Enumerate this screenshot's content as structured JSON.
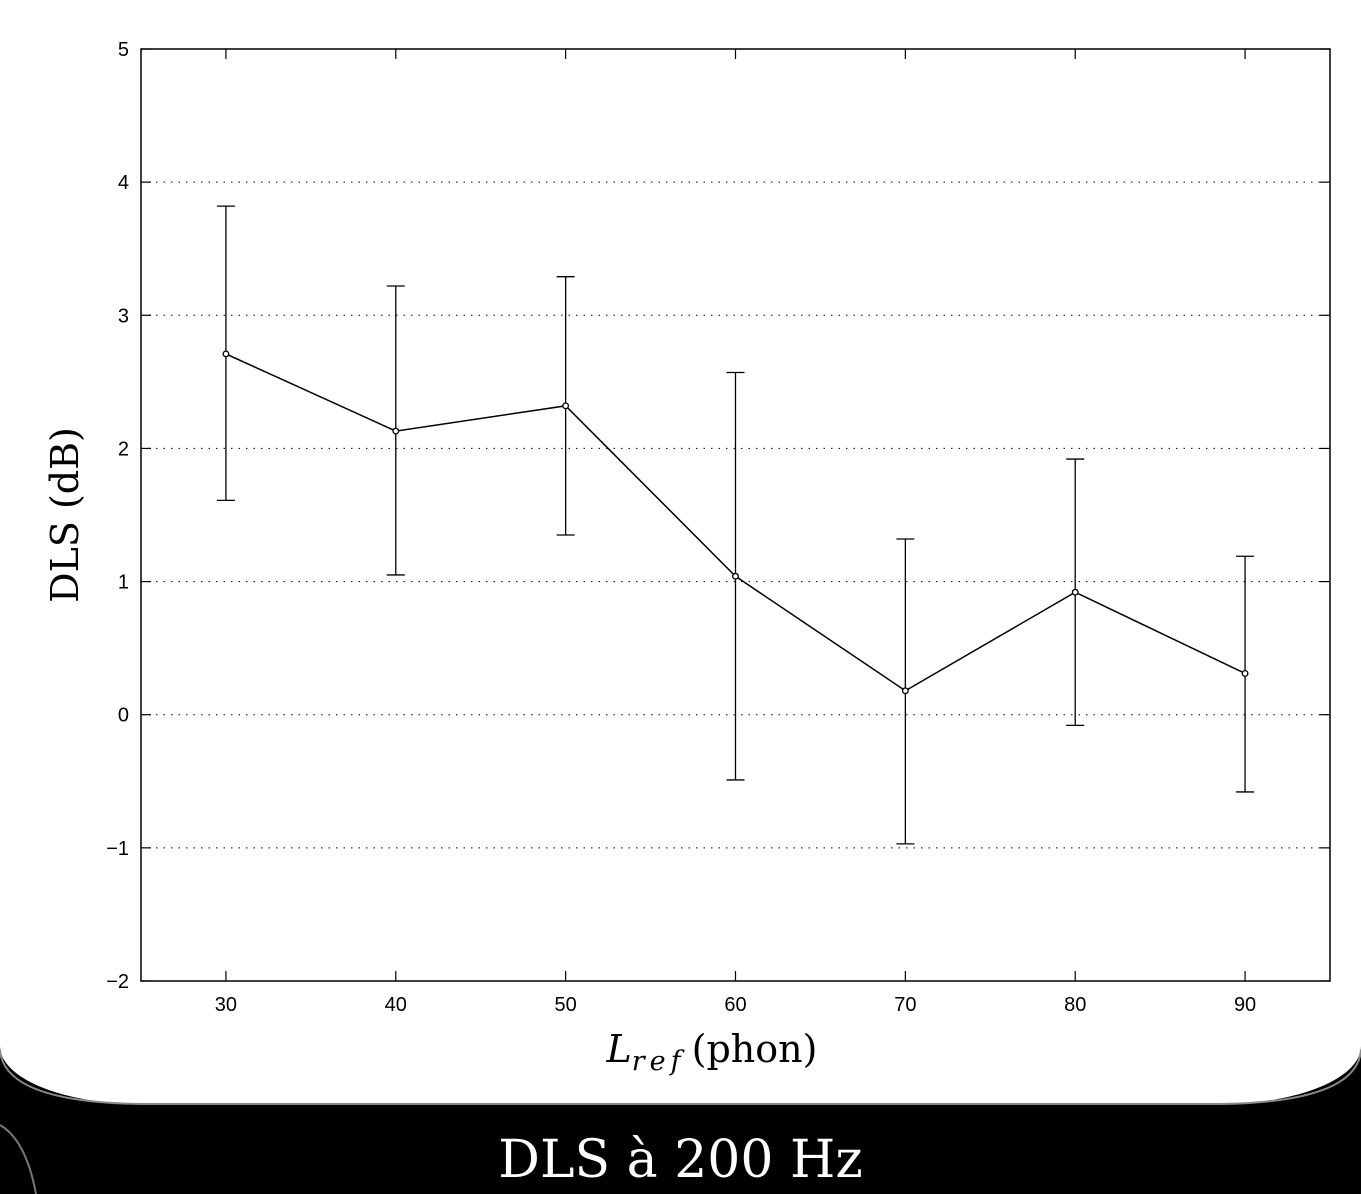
{
  "caption": "DLS à 200 Hz",
  "chart_data": {
    "type": "line",
    "xlabel_main": "L",
    "xlabel_sub": "ref",
    "xlabel_unit": "(phon)",
    "ylabel": "DLS (dB)",
    "xlim": [
      25,
      95
    ],
    "ylim": [
      -2,
      5
    ],
    "xticks": [
      30,
      40,
      50,
      60,
      70,
      80,
      90
    ],
    "yticks": [
      -2,
      -1,
      0,
      1,
      2,
      3,
      4,
      5
    ],
    "ytick_labels": [
      "−2",
      "−1",
      "0",
      "1",
      "2",
      "3",
      "4",
      "5"
    ],
    "grid": "y-dotted",
    "series": [
      {
        "x": [
          30,
          40,
          50,
          60,
          70,
          80,
          90
        ],
        "y": [
          2.71,
          2.13,
          2.32,
          1.04,
          0.18,
          0.92,
          0.31
        ],
        "err_low": [
          1.61,
          1.05,
          1.35,
          -0.49,
          -0.97,
          -0.08,
          -0.58
        ],
        "err_high": [
          3.82,
          3.22,
          3.29,
          2.57,
          1.32,
          1.92,
          1.19
        ],
        "color": "#000000"
      }
    ]
  }
}
